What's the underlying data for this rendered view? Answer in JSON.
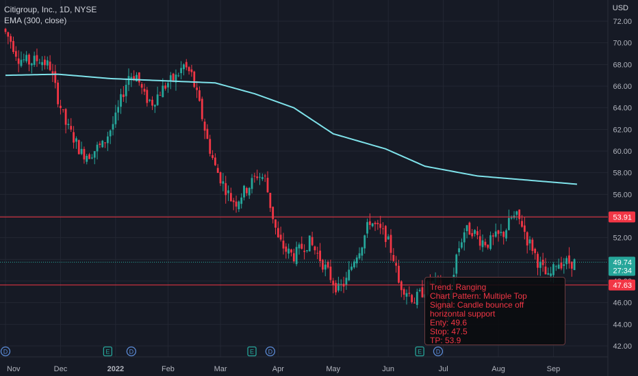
{
  "header": {
    "symbol_line": "Citigroup, Inc., 1D, NYSE",
    "indicator_line": "EMA (300, close)",
    "currency": "USD"
  },
  "info_box": {
    "trend": "Trend: Ranging",
    "pattern": "Chart Pattern: Multiple Top",
    "signal": "Signal: Candle bounce off horizontal support",
    "entry": "Enty: 49.6",
    "stop": "Stop: 47.5",
    "tp": "TP: 53.9"
  },
  "chart_data": {
    "type": "candlestick",
    "title": "Citigroup, Inc., 1D, NYSE",
    "y_ticks": [
      42,
      44,
      46,
      48,
      50,
      52,
      54,
      56,
      58,
      60,
      62,
      64,
      66,
      68,
      70,
      72
    ],
    "y_tick_labels": [
      "42.00",
      "44.00",
      "46.00",
      "48.00",
      "50.00",
      "52.00",
      "54.00",
      "56.00",
      "58.00",
      "60.00",
      "62.00",
      "64.00",
      "66.00",
      "68.00",
      "70.00",
      "72.00"
    ],
    "ylim": [
      41.5,
      73.2
    ],
    "x_labels": [
      "Nov",
      "Dec",
      "2022",
      "Feb",
      "Mar",
      "Apr",
      "May",
      "Jun",
      "Jul",
      "Aug",
      "Sep"
    ],
    "x_label_index": [
      0,
      21,
      42,
      62,
      82,
      104,
      125,
      146,
      167,
      188,
      209
    ],
    "num_bars": 218,
    "up_color": "#26a69a",
    "down_color": "#f23645",
    "ema_color": "#7fe3eb",
    "ema": [
      [
        0,
        67.0
      ],
      [
        20,
        67.1
      ],
      [
        40,
        66.7
      ],
      [
        60,
        66.5
      ],
      [
        80,
        66.3
      ],
      [
        95,
        65.3
      ],
      [
        110,
        64.0
      ],
      [
        125,
        61.6
      ],
      [
        145,
        60.2
      ],
      [
        160,
        58.6
      ],
      [
        180,
        57.7
      ],
      [
        200,
        57.3
      ],
      [
        220,
        56.9
      ]
    ],
    "price_path": [
      [
        0,
        71.3
      ],
      [
        3,
        70.2
      ],
      [
        6,
        68.6
      ],
      [
        10,
        68.2
      ],
      [
        14,
        68.5
      ],
      [
        18,
        67.8
      ],
      [
        21,
        64.9
      ],
      [
        24,
        62.5
      ],
      [
        27,
        61.2
      ],
      [
        30,
        59.8
      ],
      [
        33,
        59.7
      ],
      [
        36,
        60.3
      ],
      [
        38,
        60.5
      ],
      [
        40,
        61.5
      ],
      [
        43,
        63.0
      ],
      [
        46,
        65.5
      ],
      [
        48,
        67.0
      ],
      [
        51,
        67.0
      ],
      [
        54,
        65.0
      ],
      [
        57,
        64.5
      ],
      [
        60,
        65.5
      ],
      [
        63,
        66.3
      ],
      [
        66,
        66.8
      ],
      [
        69,
        67.9
      ],
      [
        72,
        67.0
      ],
      [
        75,
        64.2
      ],
      [
        78,
        61.0
      ],
      [
        81,
        58.5
      ],
      [
        84,
        57.0
      ],
      [
        87,
        55.6
      ],
      [
        89,
        55.3
      ],
      [
        91,
        56.0
      ],
      [
        94,
        56.8
      ],
      [
        97,
        57.8
      ],
      [
        100,
        57.5
      ],
      [
        102,
        55.0
      ],
      [
        105,
        51.8
      ],
      [
        108,
        50.8
      ],
      [
        111,
        50.3
      ],
      [
        114,
        51.1
      ],
      [
        117,
        51.6
      ],
      [
        120,
        50.5
      ],
      [
        123,
        49.2
      ],
      [
        126,
        47.9
      ],
      [
        128,
        47.2
      ],
      [
        131,
        48.0
      ],
      [
        134,
        50.1
      ],
      [
        137,
        51.5
      ],
      [
        140,
        53.6
      ],
      [
        143,
        52.8
      ],
      [
        146,
        52.2
      ],
      [
        149,
        50.2
      ],
      [
        151,
        47.8
      ],
      [
        154,
        47.1
      ],
      [
        157,
        46.2
      ],
      [
        160,
        47.0
      ],
      [
        163,
        47.7
      ],
      [
        166,
        47.8
      ],
      [
        169,
        44.5
      ],
      [
        171,
        47.5
      ],
      [
        173,
        50.4
      ],
      [
        176,
        52.6
      ],
      [
        179,
        52.7
      ],
      [
        182,
        51.8
      ],
      [
        185,
        51.5
      ],
      [
        188,
        52.0
      ],
      [
        191,
        52.4
      ],
      [
        194,
        53.8
      ],
      [
        196,
        53.9
      ],
      [
        198,
        53.3
      ],
      [
        200,
        51.8
      ],
      [
        202,
        51.1
      ],
      [
        204,
        49.8
      ],
      [
        206,
        49.0
      ],
      [
        208,
        48.2
      ],
      [
        210,
        49.0
      ],
      [
        211,
        49.7
      ]
    ],
    "levels": [
      {
        "name": "resistance",
        "value": 53.91,
        "label": "53.91",
        "color": "#f23645"
      },
      {
        "name": "support",
        "value": 47.63,
        "label": "47.63",
        "color": "#f23645"
      }
    ],
    "last_price": {
      "value": 49.74,
      "label": "49.74",
      "countdown": "27:34",
      "color": "#26a69a"
    },
    "events": [
      {
        "index": 0,
        "letter": "D"
      },
      {
        "index": 39,
        "letter": "E"
      },
      {
        "index": 48,
        "letter": "D"
      },
      {
        "index": 94,
        "letter": "E"
      },
      {
        "index": 101,
        "letter": "D"
      },
      {
        "index": 158,
        "letter": "E"
      },
      {
        "index": 165,
        "letter": "D"
      }
    ]
  }
}
